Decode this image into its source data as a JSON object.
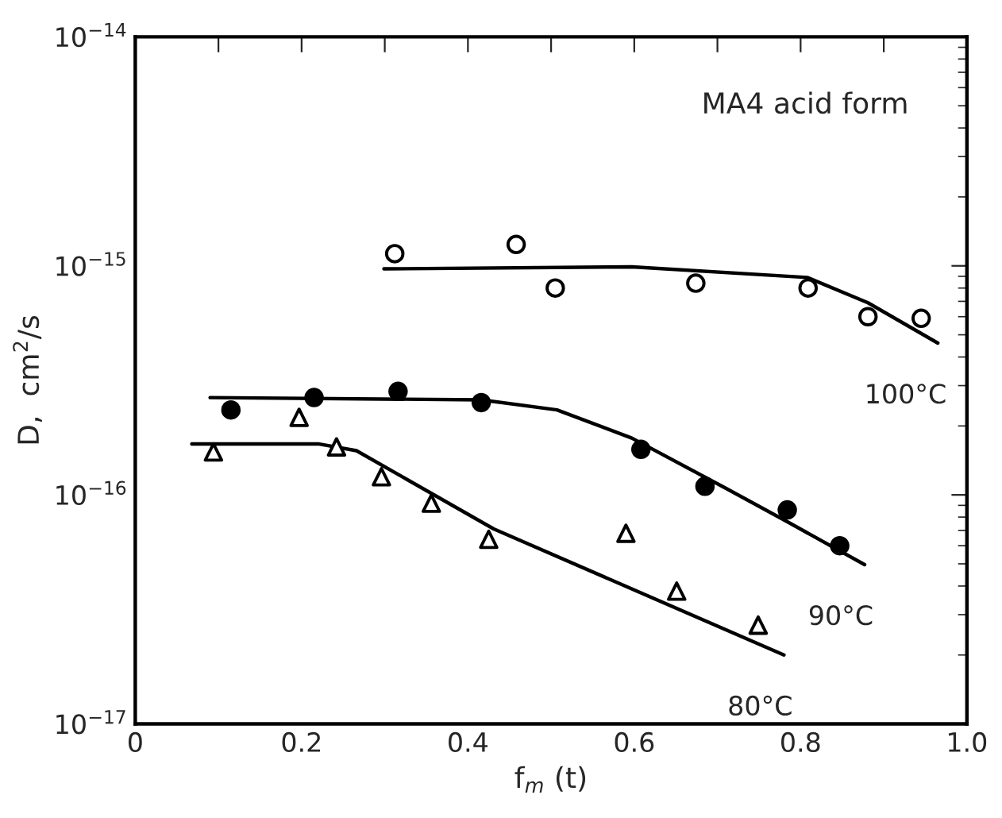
{
  "chart_data": {
    "type": "scatter",
    "xlabel": "f$_{m}$ (t)",
    "ylabel": "D,  cm$^{2}$/s",
    "annotations": [
      "MA4 acid form"
    ],
    "log": "y",
    "grid": false,
    "legend": false,
    "xlim": [
      0,
      1.0
    ],
    "ylim": [
      1e-17,
      1e-14
    ],
    "xticks": [
      0,
      {
        "value": 0.1,
        "label": null
      },
      0.2,
      {
        "value": 0.3,
        "label": null
      },
      0.4,
      {
        "value": 0.5,
        "label": null
      },
      0.6,
      {
        "value": 0.7,
        "label": null
      },
      0.8,
      {
        "value": 0.9,
        "label": null
      },
      {
        "value": 1.0,
        "label": "1.0"
      }
    ],
    "yticks": [
      {
        "value": 1e-17,
        "label": "10$^{−17}$"
      },
      {
        "value": 1e-16,
        "label": "10$^{−16}$"
      },
      {
        "value": 1e-15,
        "label": "10$^{−15}$"
      },
      {
        "value": 1e-14,
        "label": "10$^{−14}$"
      }
    ],
    "series": [
      {
        "marker": "circle",
        "color": "#ffffff",
        "x": [
          0.312,
          0.458,
          0.505,
          0.674,
          0.809,
          0.881,
          0.945
        ],
        "values": [
          1.13e-15,
          1.24e-15,
          8e-16,
          8.4e-16,
          8e-16,
          6e-16,
          5.9e-16
        ]
      },
      {
        "marker": "circle",
        "color": "#000000",
        "x": [
          0.115,
          0.215,
          0.316,
          0.416,
          0.608,
          0.685,
          0.784,
          0.847
        ],
        "values": [
          2.35e-16,
          2.66e-16,
          2.83e-16,
          2.53e-16,
          1.58e-16,
          1.09e-16,
          8.6e-17,
          6e-17
        ]
      },
      {
        "marker": "triangle",
        "color": "#ffffff",
        "x": [
          0.094,
          0.197,
          0.242,
          0.296,
          0.356,
          0.425,
          0.59,
          0.651,
          0.749
        ],
        "values": [
          1.54e-16,
          2.18e-16,
          1.62e-16,
          1.2e-16,
          9.2e-17,
          6.4e-17,
          6.8e-17,
          3.8e-17,
          2.7e-17
        ]
      },
      {
        "type": "line",
        "name": "100°C",
        "marker": "none",
        "color": "#000000",
        "x": [
          0.299,
          0.597,
          0.808,
          0.881,
          0.965
        ],
        "values": [
          9.7e-16,
          9.9e-16,
          8.9e-16,
          6.9e-16,
          4.6e-16
        ]
      },
      {
        "type": "line",
        "name": "90°C",
        "marker": "none",
        "color": "#000000",
        "x": [
          0.09,
          0.416,
          0.507,
          0.597,
          0.71,
          0.785,
          0.877
        ],
        "values": [
          2.66e-16,
          2.6e-16,
          2.35e-16,
          1.77e-16,
          1.07e-16,
          7.6e-17,
          4.96e-17
        ]
      },
      {
        "type": "line",
        "name": "80°C",
        "marker": "none",
        "color": "#000000",
        "x": [
          0.068,
          0.22,
          0.266,
          0.431,
          0.78
        ],
        "values": [
          1.67e-16,
          1.67e-16,
          1.56e-16,
          7.1e-17,
          2e-17
        ]
      }
    ]
  }
}
